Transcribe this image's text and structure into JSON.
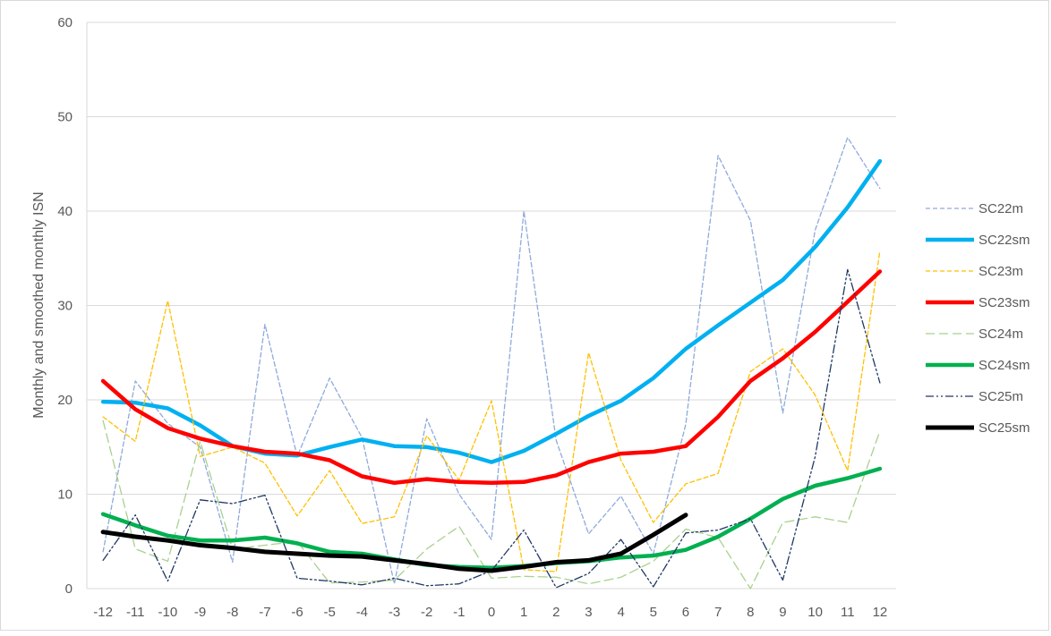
{
  "chart_data": {
    "type": "line",
    "title": "",
    "xlabel": "",
    "ylabel": "Monthly and smoothed monthly ISN",
    "x": [
      -12,
      -11,
      -10,
      -9,
      -8,
      -7,
      -6,
      -5,
      -4,
      -3,
      -2,
      -1,
      0,
      1,
      2,
      3,
      4,
      5,
      6,
      7,
      8,
      9,
      10,
      11,
      12
    ],
    "x_tick_labels": [
      "-12",
      "-11",
      "-10",
      "-9",
      "-8",
      "-7",
      "-6",
      "-5",
      "-4",
      "-3",
      "-2",
      "-1",
      "0",
      "1",
      "2",
      "3",
      "4",
      "5",
      "6",
      "7",
      "8",
      "9",
      "10",
      "11",
      "12"
    ],
    "y_ticks": [
      0,
      10,
      20,
      30,
      40,
      50,
      60
    ],
    "y_tick_labels": [
      "0",
      "10",
      "20",
      "30",
      "40",
      "50",
      "60"
    ],
    "xlim": [
      -12.5,
      12.5
    ],
    "ylim": [
      0,
      60
    ],
    "grid": "horizontal",
    "legend_position": "right",
    "series": [
      {
        "name": "SC22m",
        "color": "#8faadc",
        "style": "dash-thin",
        "values": [
          3.9,
          22.0,
          17.5,
          15.0,
          2.8,
          28.0,
          14.0,
          22.3,
          16.0,
          0.5,
          18.0,
          10.0,
          5.2,
          40.0,
          15.7,
          5.8,
          9.8,
          3.7,
          17.4,
          45.9,
          39.0,
          18.6,
          38.0,
          47.8,
          42.4
        ]
      },
      {
        "name": "SC22sm",
        "color": "#00b0f0",
        "style": "solid-thick",
        "values": [
          19.8,
          19.7,
          19.1,
          17.3,
          15.1,
          14.3,
          14.1,
          15.0,
          15.8,
          15.1,
          15.0,
          14.4,
          13.4,
          14.6,
          16.4,
          18.3,
          19.9,
          22.3,
          25.4,
          27.9,
          30.3,
          32.7,
          36.2,
          40.4,
          45.3
        ]
      },
      {
        "name": "SC23m",
        "color": "#ffc000",
        "style": "dash-thin",
        "values": [
          18.2,
          15.6,
          30.5,
          14.0,
          15.0,
          13.3,
          7.7,
          12.5,
          6.9,
          7.6,
          16.2,
          11.5,
          19.9,
          2.0,
          1.8,
          25.0,
          13.6,
          7.0,
          11.1,
          12.2,
          23.0,
          25.4,
          20.5,
          12.5,
          35.8
        ]
      },
      {
        "name": "SC23sm",
        "color": "#ff0000",
        "style": "solid-thick",
        "values": [
          22.0,
          19.0,
          17.0,
          15.9,
          15.1,
          14.5,
          14.3,
          13.6,
          11.9,
          11.2,
          11.6,
          11.3,
          11.2,
          11.3,
          12.0,
          13.4,
          14.3,
          14.5,
          15.1,
          18.2,
          22.0,
          24.4,
          27.2,
          30.4,
          33.6
        ]
      },
      {
        "name": "SC24m",
        "color": "#a9d18e",
        "style": "longdash-thin",
        "values": [
          17.8,
          4.2,
          2.9,
          15.6,
          4.2,
          4.6,
          5.0,
          0.6,
          0.7,
          0.9,
          4.2,
          6.6,
          1.1,
          1.3,
          1.2,
          0.5,
          1.2,
          2.9,
          6.3,
          5.4,
          0.0,
          7.0,
          7.6,
          7.0,
          16.7
        ]
      },
      {
        "name": "SC24sm",
        "color": "#00b050",
        "style": "solid-thick",
        "values": [
          7.9,
          6.7,
          5.6,
          5.1,
          5.1,
          5.4,
          4.8,
          3.9,
          3.7,
          3.1,
          2.5,
          2.3,
          2.2,
          2.4,
          2.7,
          2.9,
          3.3,
          3.5,
          4.1,
          5.5,
          7.4,
          9.5,
          10.9,
          11.7,
          12.7
        ]
      },
      {
        "name": "SC25m",
        "color": "#203864",
        "style": "dashdot-thin",
        "values": [
          3.0,
          7.8,
          0.8,
          9.4,
          9.0,
          9.9,
          1.1,
          0.8,
          0.4,
          1.1,
          0.3,
          0.5,
          1.9,
          6.2,
          0.1,
          1.6,
          5.2,
          0.2,
          5.9,
          6.2,
          7.4,
          0.9,
          14.0,
          33.8,
          21.8
        ]
      },
      {
        "name": "SC25sm",
        "color": "#000000",
        "style": "solid-thicker",
        "values": [
          6.0,
          5.5,
          5.1,
          4.6,
          4.3,
          3.9,
          3.7,
          3.5,
          3.4,
          3.0,
          2.6,
          2.1,
          1.9,
          2.3,
          2.8,
          3.0,
          3.7,
          5.7,
          7.8,
          null,
          null,
          null,
          null,
          null,
          null
        ]
      }
    ]
  }
}
